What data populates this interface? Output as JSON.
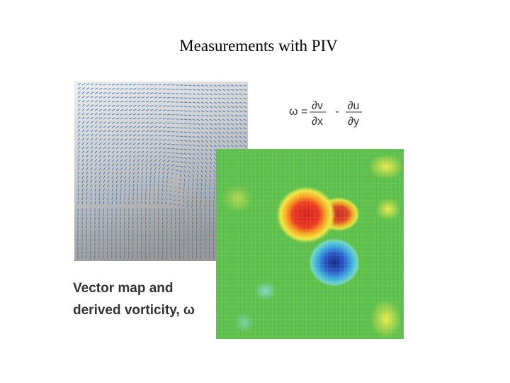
{
  "header": {
    "title": "Measurements with PIV"
  },
  "formula": {
    "lhs": "ω =",
    "term1": {
      "numerator": "∂v",
      "denominator": "∂x"
    },
    "operator": "-",
    "term2": {
      "numerator": "∂u",
      "denominator": "∂y"
    }
  },
  "caption": {
    "lines": [
      "Vector map and",
      "derived vorticity, ω"
    ]
  }
}
